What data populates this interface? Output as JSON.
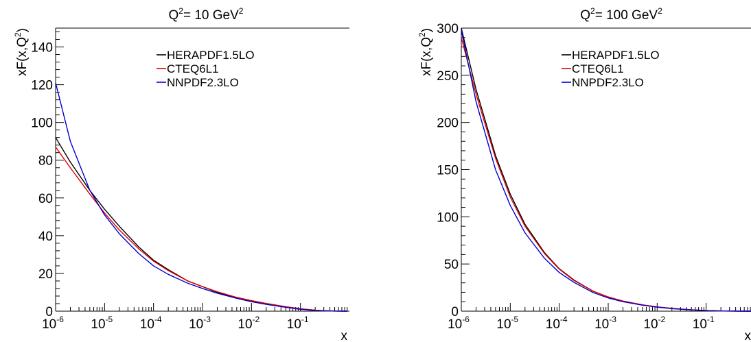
{
  "chart_data": [
    {
      "type": "line",
      "title": "Q²= 10 GeV²",
      "title_text": "Q",
      "title_mid": "= 10 GeV",
      "title_sup": "2",
      "xlabel": "x",
      "ylabel": "xF(x,Q²)",
      "ylabel_main": "xF(x,Q",
      "ylabel_sup": "2",
      "ylabel_end": ")",
      "xscale": "log",
      "xlim": [
        1e-06,
        1
      ],
      "ylim": [
        0,
        150
      ],
      "xticks": [
        {
          "base": "10",
          "exp": "-6",
          "value": 1e-06
        },
        {
          "base": "10",
          "exp": "-5",
          "value": 1e-05
        },
        {
          "base": "10",
          "exp": "-4",
          "value": 0.0001
        },
        {
          "base": "10",
          "exp": "-3",
          "value": 0.001
        },
        {
          "base": "10",
          "exp": "-2",
          "value": 0.01
        },
        {
          "base": "10",
          "exp": "-1",
          "value": 0.1
        }
      ],
      "yticks": [
        "0",
        "20",
        "40",
        "60",
        "80",
        "100",
        "120",
        "140"
      ],
      "yticks_values": [
        0,
        20,
        40,
        60,
        80,
        100,
        120,
        140
      ],
      "legend": "top-right",
      "grid": false,
      "series": [
        {
          "name": "HERAPDF1.5LO",
          "color": "#000000",
          "x": [
            1e-06,
            2e-06,
            5e-06,
            1e-05,
            2e-05,
            5e-05,
            0.0001,
            0.0002,
            0.0005,
            0.001,
            0.002,
            0.005,
            0.01,
            0.02,
            0.05,
            0.1,
            0.2,
            0.3,
            0.5,
            0.7,
            0.9
          ],
          "y": [
            92,
            79,
            64,
            54,
            45,
            34,
            27,
            22,
            16,
            13,
            10,
            7,
            5.2,
            3.8,
            2.2,
            1.2,
            0.5,
            0.25,
            0.05,
            0.01,
            0
          ]
        },
        {
          "name": "CTEQ6L1",
          "color": "#e00000",
          "x": [
            1e-06,
            2e-06,
            5e-06,
            1e-05,
            2e-05,
            5e-05,
            0.0001,
            0.0002,
            0.0005,
            0.001,
            0.002,
            0.005,
            0.01,
            0.02,
            0.05,
            0.1,
            0.2,
            0.3,
            0.5,
            0.7,
            0.9
          ],
          "y": [
            87,
            76,
            62,
            52,
            43,
            33,
            26.5,
            21.5,
            16,
            13,
            10.3,
            7.3,
            5.6,
            4.1,
            2.4,
            1.3,
            0.5,
            0.25,
            0.05,
            0.01,
            0
          ]
        },
        {
          "name": "NNPDF2.3LO",
          "color": "#0000cc",
          "x": [
            1e-06,
            2e-06,
            5e-06,
            1e-05,
            2e-05,
            5e-05,
            0.0001,
            0.0002,
            0.0005,
            0.001,
            0.002,
            0.005,
            0.01,
            0.02,
            0.05,
            0.1,
            0.2,
            0.3,
            0.5,
            0.7,
            0.9
          ],
          "y": [
            121,
            90,
            64,
            51,
            41,
            30.5,
            24,
            19.5,
            14.8,
            12,
            9.5,
            6.8,
            5,
            3.6,
            2,
            1,
            0.3,
            0.15,
            0.03,
            0,
            0
          ]
        }
      ]
    },
    {
      "type": "line",
      "title": "Q²= 100 GeV²",
      "title_text": "Q",
      "title_mid": "= 100 GeV",
      "title_sup": "2",
      "xlabel": "x",
      "ylabel": "xF(x,Q²)",
      "ylabel_main": "xF(x,Q",
      "ylabel_sup": "2",
      "ylabel_end": ")",
      "xscale": "log",
      "xlim": [
        1e-06,
        1
      ],
      "ylim": [
        0,
        300
      ],
      "xticks": [
        {
          "base": "10",
          "exp": "-6",
          "value": 1e-06
        },
        {
          "base": "10",
          "exp": "-5",
          "value": 1e-05
        },
        {
          "base": "10",
          "exp": "-4",
          "value": 0.0001
        },
        {
          "base": "10",
          "exp": "-3",
          "value": 0.001
        },
        {
          "base": "10",
          "exp": "-2",
          "value": 0.01
        },
        {
          "base": "10",
          "exp": "-1",
          "value": 0.1
        }
      ],
      "yticks": [
        "0",
        "50",
        "100",
        "150",
        "200",
        "250",
        "300"
      ],
      "yticks_values": [
        0,
        50,
        100,
        150,
        200,
        250,
        300
      ],
      "legend": "top-right",
      "grid": false,
      "series": [
        {
          "name": "HERAPDF1.5LO",
          "color": "#000000",
          "x": [
            1e-06,
            2e-06,
            5e-06,
            1e-05,
            2e-05,
            5e-05,
            0.0001,
            0.0002,
            0.0005,
            0.001,
            0.002,
            0.005,
            0.01,
            0.02,
            0.05,
            0.1,
            0.2,
            0.3,
            0.5,
            0.7,
            0.9
          ],
          "y": [
            300,
            235,
            165,
            124,
            92,
            62,
            45,
            33,
            21,
            15,
            10.5,
            6.5,
            4.3,
            2.8,
            1.4,
            0.7,
            0.25,
            0.1,
            0.02,
            0,
            0
          ]
        },
        {
          "name": "CTEQ6L1",
          "color": "#e00000",
          "x": [
            1e-06,
            2e-06,
            5e-06,
            1e-05,
            2e-05,
            5e-05,
            0.0001,
            0.0002,
            0.0005,
            0.001,
            0.002,
            0.005,
            0.01,
            0.02,
            0.05,
            0.1,
            0.2,
            0.3,
            0.5,
            0.7,
            0.9
          ],
          "y": [
            290,
            230,
            162,
            121,
            90,
            61,
            44.5,
            32.5,
            21,
            15,
            10.8,
            6.8,
            4.6,
            3,
            1.5,
            0.7,
            0.25,
            0.1,
            0.02,
            0,
            0
          ]
        },
        {
          "name": "NNPDF2.3LO",
          "color": "#0000cc",
          "x": [
            1e-06,
            2e-06,
            5e-06,
            1e-05,
            2e-05,
            5e-05,
            0.0001,
            0.0002,
            0.0005,
            0.001,
            0.002,
            0.005,
            0.01,
            0.02,
            0.05,
            0.1,
            0.2,
            0.3,
            0.5,
            0.7,
            0.9
          ],
          "y": [
            298,
            222,
            150,
            112,
            83,
            56,
            41,
            30.5,
            19.5,
            14,
            10,
            6.3,
            4.2,
            2.7,
            1.3,
            0.6,
            0.2,
            0.08,
            0.01,
            0,
            0
          ]
        }
      ]
    }
  ]
}
